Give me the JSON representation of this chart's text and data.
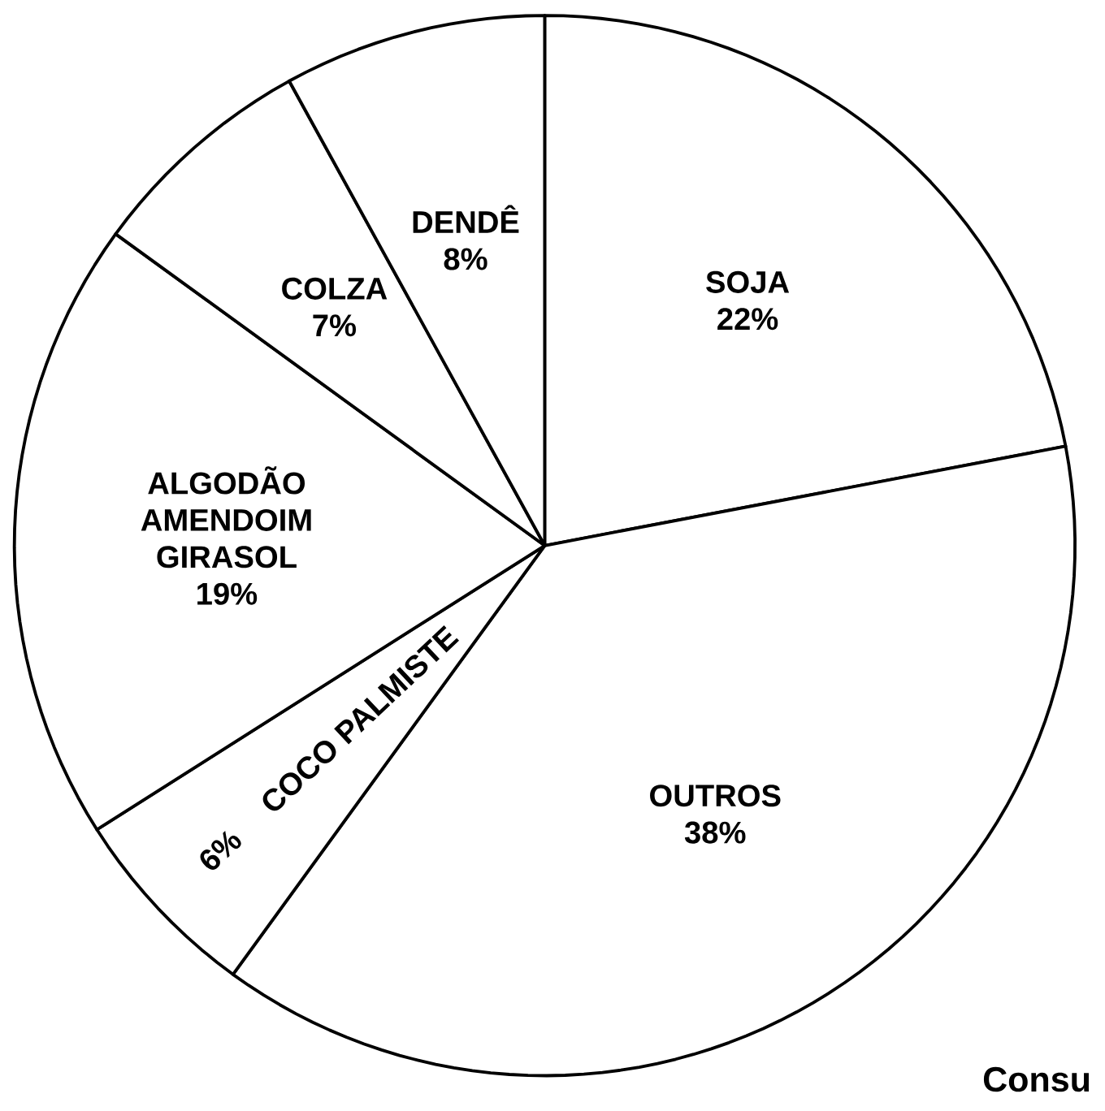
{
  "chart_data": {
    "type": "pie",
    "title": "Consu",
    "categories": [
      "SOJA",
      "OUTROS",
      "COCO PALMISTE",
      "ALGODÃO AMENDOIM GIRASOL",
      "COLZA",
      "DENDÊ"
    ],
    "values": [
      22,
      38,
      6,
      19,
      7,
      8
    ],
    "value_labels": [
      "22%",
      "38%",
      "6%",
      "19%",
      "7%",
      "8%"
    ],
    "colors": [
      "#ffffff",
      "#ffffff",
      "#ffffff",
      "#ffffff",
      "#ffffff",
      "#ffffff"
    ]
  }
}
